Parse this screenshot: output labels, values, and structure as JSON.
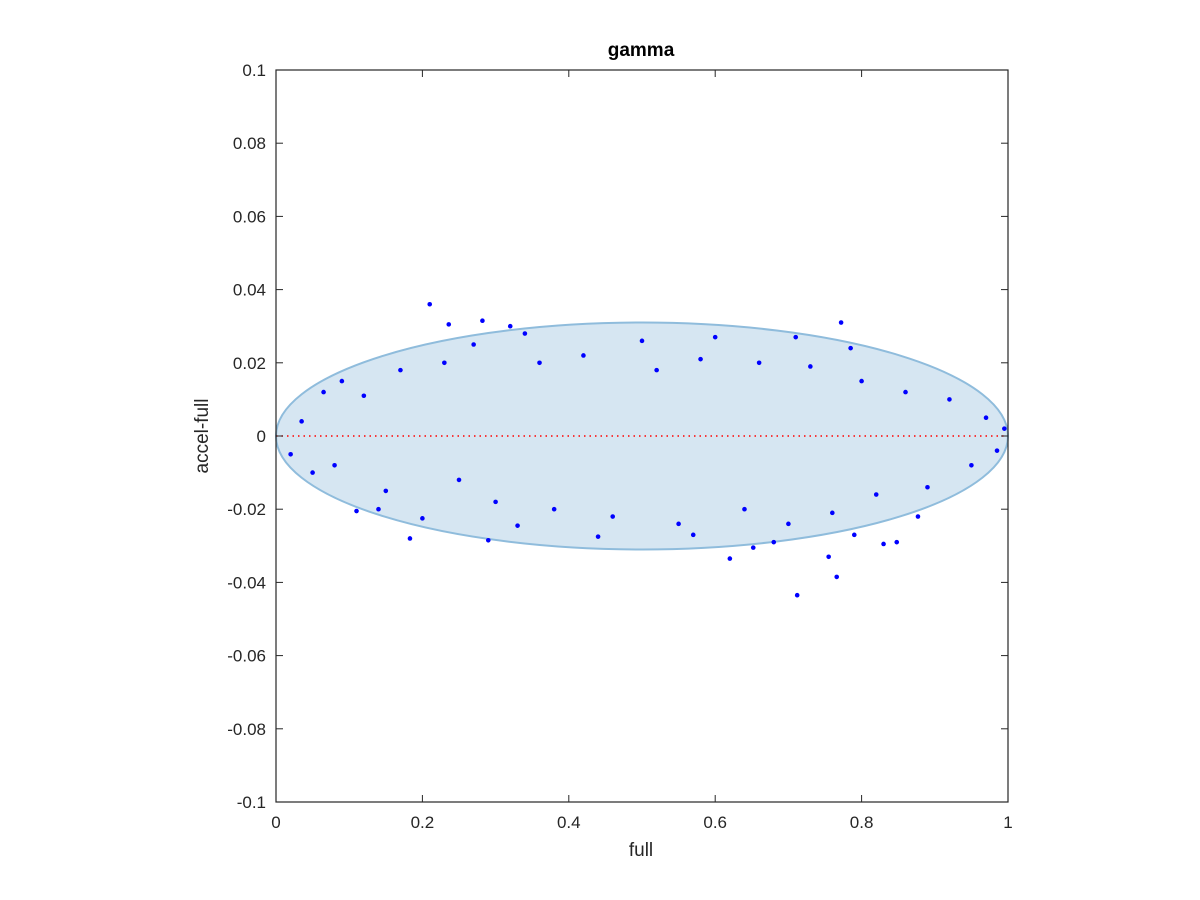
{
  "chart_data": {
    "type": "scatter",
    "title": "gamma",
    "xlabel": "full",
    "ylabel": "accel-full",
    "xlim": [
      0,
      1
    ],
    "ylim": [
      -0.1,
      0.1
    ],
    "x_ticks": [
      0,
      0.2,
      0.4,
      0.6,
      0.8,
      1
    ],
    "x_tick_labels": [
      "0",
      "0.2",
      "0.4",
      "0.6",
      "0.8",
      "1"
    ],
    "y_ticks": [
      0.1,
      0.08,
      0.06,
      0.04,
      0.02,
      0,
      -0.02,
      -0.04,
      -0.06,
      -0.08,
      -0.1
    ],
    "y_tick_labels": [
      "0.1",
      "0.08",
      "0.06",
      "0.04",
      "0.02",
      "0",
      "-0.02",
      "-0.04",
      "-0.06",
      "-0.08",
      "-0.1"
    ],
    "grid": false,
    "ellipse": {
      "cx": 0.5,
      "cy": 0,
      "rx": 0.5,
      "ry": 0.031,
      "fill": "#d6e6f2",
      "stroke": "#8fbcdc"
    },
    "reference_line": {
      "y": 0,
      "color": "#ff0000",
      "style": "dotted"
    },
    "series": [
      {
        "color": "#0000ff",
        "points": [
          [
            0.21,
            0.036
          ],
          [
            0.236,
            0.0305
          ],
          [
            0.282,
            0.0315
          ],
          [
            0.32,
            0.03
          ],
          [
            0.772,
            0.031
          ],
          [
            0.785,
            0.024
          ],
          [
            0.71,
            0.027
          ],
          [
            0.34,
            0.028
          ],
          [
            0.5,
            0.026
          ],
          [
            0.6,
            0.027
          ],
          [
            0.62,
            -0.0335
          ],
          [
            0.652,
            -0.0305
          ],
          [
            0.712,
            -0.0435
          ],
          [
            0.755,
            -0.033
          ],
          [
            0.766,
            -0.0385
          ],
          [
            0.83,
            -0.0295
          ],
          [
            0.848,
            -0.029
          ],
          [
            0.79,
            -0.027
          ],
          [
            0.2,
            -0.0225
          ],
          [
            0.183,
            -0.028
          ],
          [
            0.29,
            -0.0285
          ],
          [
            0.11,
            -0.0205
          ],
          [
            0.14,
            -0.02
          ],
          [
            0.33,
            -0.0245
          ],
          [
            0.44,
            -0.0275
          ],
          [
            0.57,
            -0.027
          ],
          [
            0.68,
            -0.029
          ],
          [
            0.877,
            -0.022
          ],
          [
            0.02,
            -0.005
          ],
          [
            0.035,
            0.004
          ],
          [
            0.05,
            -0.01
          ],
          [
            0.065,
            0.012
          ],
          [
            0.08,
            -0.008
          ],
          [
            0.09,
            0.015
          ],
          [
            0.12,
            0.011
          ],
          [
            0.15,
            -0.015
          ],
          [
            0.17,
            0.018
          ],
          [
            0.23,
            0.02
          ],
          [
            0.25,
            -0.012
          ],
          [
            0.27,
            0.025
          ],
          [
            0.3,
            -0.018
          ],
          [
            0.36,
            0.02
          ],
          [
            0.38,
            -0.02
          ],
          [
            0.42,
            0.022
          ],
          [
            0.46,
            -0.022
          ],
          [
            0.52,
            0.018
          ],
          [
            0.55,
            -0.024
          ],
          [
            0.58,
            0.021
          ],
          [
            0.64,
            -0.02
          ],
          [
            0.66,
            0.02
          ],
          [
            0.7,
            -0.024
          ],
          [
            0.73,
            0.019
          ],
          [
            0.76,
            -0.021
          ],
          [
            0.8,
            0.015
          ],
          [
            0.82,
            -0.016
          ],
          [
            0.86,
            0.012
          ],
          [
            0.89,
            -0.014
          ],
          [
            0.92,
            0.01
          ],
          [
            0.95,
            -0.008
          ],
          [
            0.97,
            0.005
          ],
          [
            0.985,
            -0.004
          ],
          [
            0.995,
            0.002
          ]
        ]
      }
    ]
  }
}
